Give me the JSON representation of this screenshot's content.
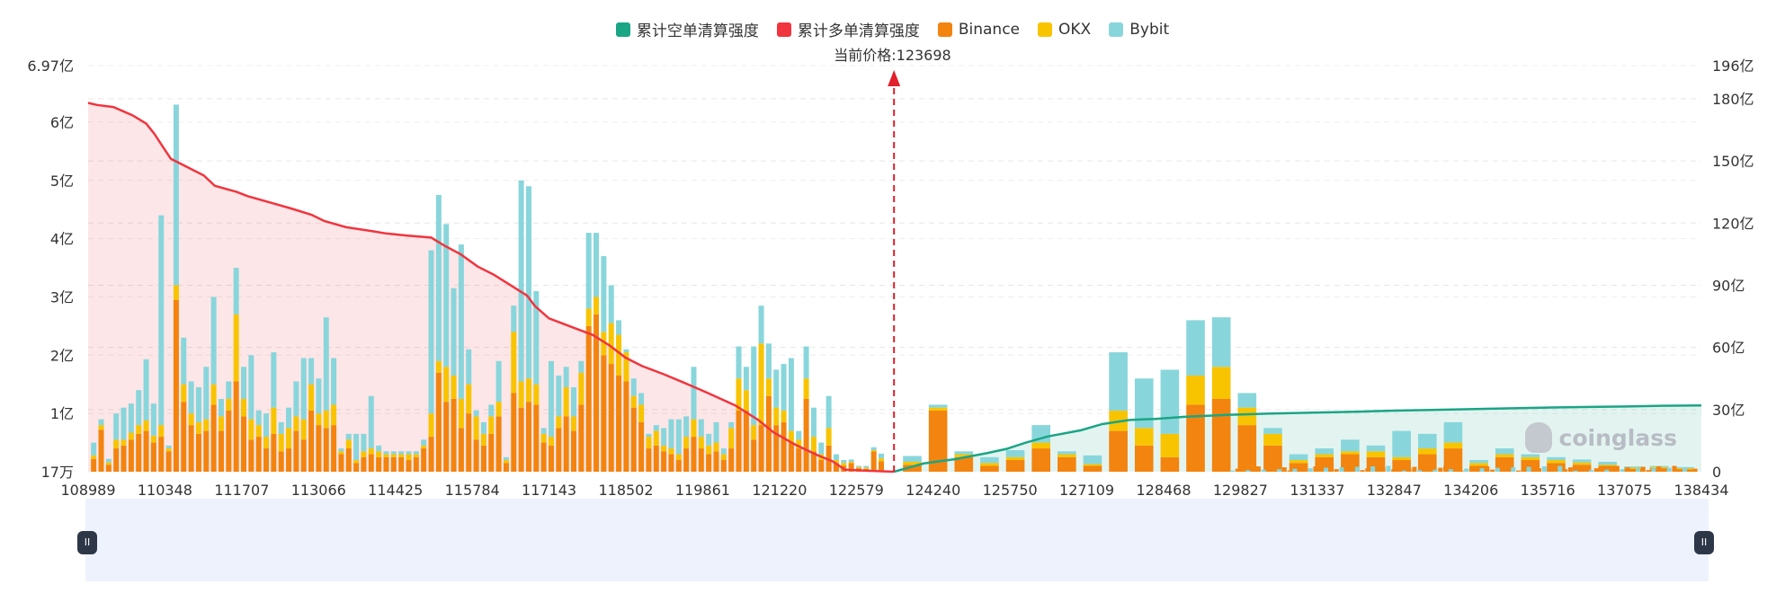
{
  "legend": [
    {
      "label": "累计空单清算强度",
      "color": "#1aa585"
    },
    {
      "label": "累计多单清算强度",
      "color": "#f0353e"
    },
    {
      "label": "Binance",
      "color": "#f2840f"
    },
    {
      "label": "OKX",
      "color": "#f8c400"
    },
    {
      "label": "Bybit",
      "color": "#88d6db"
    }
  ],
  "current_price_label": "当前价格:123698",
  "watermark": "coinglass",
  "slider": {
    "left_handle": "II",
    "right_handle": "II"
  },
  "chart_data": {
    "type": "bar",
    "x_range": [
      108989,
      138434
    ],
    "current_price": 123698,
    "x_ticks": [
      "108989",
      "110348",
      "111707",
      "113066",
      "114425",
      "115784",
      "117143",
      "118502",
      "119861",
      "121220",
      "122579",
      "124240",
      "125750",
      "127109",
      "128468",
      "129827",
      "131337",
      "132847",
      "134206",
      "135716",
      "137075",
      "138434"
    ],
    "left_axis": {
      "ticks": [
        {
          "label": "17万",
          "value": 0
        },
        {
          "label": "1亿",
          "value": 1
        },
        {
          "label": "2亿",
          "value": 2
        },
        {
          "label": "3亿",
          "value": 3
        },
        {
          "label": "4亿",
          "value": 4
        },
        {
          "label": "5亿",
          "value": 5
        },
        {
          "label": "6亿",
          "value": 6
        },
        {
          "label": "6.97亿",
          "value": 6.97
        }
      ],
      "max": 6.97,
      "unit": "亿"
    },
    "right_axis": {
      "ticks": [
        {
          "label": "0",
          "value": 0
        },
        {
          "label": "30亿",
          "value": 30
        },
        {
          "label": "60亿",
          "value": 60
        },
        {
          "label": "90亿",
          "value": 90
        },
        {
          "label": "120亿",
          "value": 120
        },
        {
          "label": "150亿",
          "value": 150
        },
        {
          "label": "180亿",
          "value": 180
        },
        {
          "label": "196亿",
          "value": 196
        }
      ],
      "max": 196,
      "unit": "亿"
    },
    "bars_left": [
      [
        0.22,
        0.06,
        0.22
      ],
      [
        0.72,
        0.08,
        0.1
      ],
      [
        0.12,
        0.04,
        0.06
      ],
      [
        0.4,
        0.15,
        0.45
      ],
      [
        0.45,
        0.1,
        0.55
      ],
      [
        0.55,
        0.12,
        0.5
      ],
      [
        0.65,
        0.15,
        0.6
      ],
      [
        0.7,
        0.18,
        1.05
      ],
      [
        0.5,
        0.12,
        0.55
      ],
      [
        0.6,
        0.2,
        3.6
      ],
      [
        0.35,
        0.05,
        0.05
      ],
      [
        2.95,
        0.25,
        3.1
      ],
      [
        1.2,
        0.3,
        0.8
      ],
      [
        0.8,
        0.2,
        0.55
      ],
      [
        0.65,
        0.2,
        0.6
      ],
      [
        0.7,
        0.2,
        0.9
      ],
      [
        1.15,
        0.35,
        1.5
      ],
      [
        0.7,
        0.25,
        0.3
      ],
      [
        1.05,
        0.2,
        0.3
      ],
      [
        1.55,
        1.15,
        0.8
      ],
      [
        0.95,
        0.3,
        0.55
      ],
      [
        0.55,
        0.35,
        1.1
      ],
      [
        0.6,
        0.2,
        0.25
      ],
      [
        0.4,
        0.2,
        0.4
      ],
      [
        0.65,
        0.45,
        0.95
      ],
      [
        0.35,
        0.3,
        0.2
      ],
      [
        0.4,
        0.35,
        0.35
      ],
      [
        0.7,
        0.25,
        0.6
      ],
      [
        0.55,
        0.35,
        1.05
      ],
      [
        1.05,
        0.45,
        0.45
      ],
      [
        0.8,
        0.2,
        0.6
      ],
      [
        0.75,
        0.3,
        1.6
      ],
      [
        0.8,
        0.35,
        0.8
      ],
      [
        0.3,
        0.05,
        0.05
      ],
      [
        0.4,
        0.15,
        0.1
      ],
      [
        0.15,
        0.05,
        0.45
      ],
      [
        0.25,
        0.1,
        0.3
      ],
      [
        0.3,
        0.1,
        0.9
      ],
      [
        0.25,
        0.1,
        0.1
      ],
      [
        0.25,
        0.05,
        0.05
      ],
      [
        0.25,
        0.05,
        0.05
      ],
      [
        0.25,
        0.05,
        0.05
      ],
      [
        0.2,
        0.1,
        0.05
      ],
      [
        0.25,
        0.05,
        0.05
      ],
      [
        0.4,
        0.05,
        0.1
      ],
      [
        0.6,
        0.4,
        2.8
      ],
      [
        1.7,
        0.2,
        2.85
      ],
      [
        1.2,
        0.6,
        2.45
      ],
      [
        1.25,
        0.4,
        1.5
      ],
      [
        0.75,
        0.5,
        2.65
      ],
      [
        1.0,
        0.5,
        0.6
      ],
      [
        0.55,
        0.4,
        0.1
      ],
      [
        0.45,
        0.2,
        0.2
      ],
      [
        0.65,
        0.3,
        0.2
      ],
      [
        0.95,
        0.25,
        0.7
      ],
      [
        0.15,
        0.05,
        0.05
      ],
      [
        1.35,
        1.05,
        0.45
      ],
      [
        1.1,
        0.45,
        3.45
      ],
      [
        1.2,
        0.4,
        3.3
      ],
      [
        1.15,
        0.35,
        1.6
      ],
      [
        0.5,
        0.15,
        0.1
      ],
      [
        0.45,
        0.15,
        1.3
      ],
      [
        0.75,
        0.2,
        0.7
      ],
      [
        0.95,
        0.5,
        0.35
      ],
      [
        0.7,
        0.25,
        0.5
      ],
      [
        1.15,
        0.55,
        0.2
      ],
      [
        2.5,
        0.3,
        1.3
      ],
      [
        2.7,
        0.3,
        1.1
      ],
      [
        2.0,
        0.4,
        1.3
      ],
      [
        1.85,
        0.7,
        0.65
      ],
      [
        1.65,
        0.7,
        0.25
      ],
      [
        1.55,
        0.5,
        0.05
      ],
      [
        1.1,
        0.2,
        0.3
      ],
      [
        0.85,
        0.3,
        0.2
      ],
      [
        0.4,
        0.2,
        0.05
      ],
      [
        0.45,
        0.25,
        0.1
      ],
      [
        0.35,
        0.1,
        0.3
      ],
      [
        0.3,
        0.1,
        0.5
      ],
      [
        0.2,
        0.1,
        0.6
      ],
      [
        0.4,
        0.2,
        0.35
      ],
      [
        0.6,
        0.3,
        0.9
      ],
      [
        0.4,
        0.2,
        0.3
      ],
      [
        0.3,
        0.15,
        0.2
      ],
      [
        0.35,
        0.15,
        0.35
      ],
      [
        0.2,
        0.1,
        0.1
      ],
      [
        0.4,
        0.35,
        0.1
      ],
      [
        1.05,
        0.55,
        0.55
      ],
      [
        1.05,
        0.35,
        0.4
      ],
      [
        0.55,
        0.25,
        1.35
      ],
      [
        0.8,
        1.4,
        0.65
      ],
      [
        1.3,
        0.3,
        0.6
      ],
      [
        0.8,
        0.3,
        0.65
      ],
      [
        0.85,
        0.2,
        0.8
      ],
      [
        0.5,
        0.2,
        1.25
      ],
      [
        0.4,
        0.15,
        0.15
      ],
      [
        1.25,
        0.35,
        0.55
      ],
      [
        0.35,
        0.25,
        0.5
      ],
      [
        0.2,
        0.1,
        0.2
      ],
      [
        0.45,
        0.3,
        0.55
      ],
      [
        0.15,
        0.05,
        0.1
      ],
      [
        0.1,
        0.05,
        0.05
      ],
      [
        0.15,
        0.02,
        0.04
      ],
      [
        0.06,
        0.02,
        0.02
      ],
      [
        0.05,
        0.02,
        0.03
      ],
      [
        0.35,
        0.02,
        0.05
      ],
      [
        0.18,
        0.05,
        0.08
      ]
    ],
    "bars_right": [
      [
        0.12,
        0.05,
        0.1
      ],
      [
        1.05,
        0.05,
        0.05
      ],
      [
        0.25,
        0.05,
        0.05
      ],
      [
        0.1,
        0.05,
        0.1
      ],
      [
        0.2,
        0.05,
        0.12
      ],
      [
        0.4,
        0.1,
        0.3
      ],
      [
        0.25,
        0.05,
        0.05
      ],
      [
        0.1,
        0.03,
        0.15
      ],
      [
        0.7,
        0.35,
        1.0
      ],
      [
        0.45,
        0.3,
        0.85
      ],
      [
        0.25,
        0.4,
        1.1
      ],
      [
        1.15,
        0.5,
        0.95
      ],
      [
        1.25,
        0.55,
        0.85
      ],
      [
        0.8,
        0.3,
        0.25
      ],
      [
        0.45,
        0.2,
        0.1
      ],
      [
        0.15,
        0.05,
        0.1
      ],
      [
        0.25,
        0.05,
        0.1
      ],
      [
        0.3,
        0.05,
        0.2
      ],
      [
        0.25,
        0.1,
        0.1
      ],
      [
        0.2,
        0.05,
        0.45
      ],
      [
        0.3,
        0.1,
        0.25
      ],
      [
        0.4,
        0.1,
        0.35
      ],
      [
        0.1,
        0.05,
        0.05
      ],
      [
        0.25,
        0.05,
        0.1
      ],
      [
        0.2,
        0.05,
        0.05
      ],
      [
        0.15,
        0.05,
        0.05
      ],
      [
        0.12,
        0.04,
        0.05
      ],
      [
        0.1,
        0.02,
        0.05
      ],
      [
        0.05,
        0.02,
        0.02
      ],
      [
        0.06,
        0.02,
        0.02
      ],
      [
        0.04,
        0.02,
        0.02
      ]
    ],
    "cumulative_long_yi": [
      [
        108989,
        178
      ],
      [
        109150,
        177
      ],
      [
        109450,
        176
      ],
      [
        109800,
        172
      ],
      [
        110050,
        168
      ],
      [
        110200,
        163
      ],
      [
        110348,
        157
      ],
      [
        110500,
        151
      ],
      [
        110800,
        147
      ],
      [
        111100,
        143
      ],
      [
        111300,
        138
      ],
      [
        111707,
        135
      ],
      [
        111900,
        133
      ],
      [
        112300,
        130
      ],
      [
        112700,
        127
      ],
      [
        113066,
        124
      ],
      [
        113300,
        121
      ],
      [
        113700,
        118
      ],
      [
        114200,
        116
      ],
      [
        114425,
        115
      ],
      [
        114800,
        114
      ],
      [
        115250,
        113
      ],
      [
        115500,
        109
      ],
      [
        115784,
        105
      ],
      [
        116100,
        99
      ],
      [
        116400,
        95
      ],
      [
        116700,
        90
      ],
      [
        117000,
        85
      ],
      [
        117143,
        80
      ],
      [
        117400,
        74
      ],
      [
        117800,
        70
      ],
      [
        118200,
        66
      ],
      [
        118502,
        61
      ],
      [
        118800,
        55
      ],
      [
        119100,
        51
      ],
      [
        119500,
        47
      ],
      [
        119861,
        43
      ],
      [
        120300,
        38
      ],
      [
        120800,
        32
      ],
      [
        121220,
        25
      ],
      [
        121500,
        19
      ],
      [
        121900,
        13
      ],
      [
        122300,
        8
      ],
      [
        122579,
        5
      ],
      [
        122800,
        1
      ],
      [
        123200,
        0.5
      ],
      [
        123698,
        0
      ]
    ],
    "cumulative_short_yi": [
      [
        123698,
        0
      ],
      [
        124240,
        4
      ],
      [
        124800,
        6
      ],
      [
        125400,
        9
      ],
      [
        125750,
        11
      ],
      [
        126100,
        14
      ],
      [
        126500,
        17
      ],
      [
        127109,
        20
      ],
      [
        127500,
        23
      ],
      [
        128000,
        25
      ],
      [
        128468,
        25.5
      ],
      [
        129000,
        26.5
      ],
      [
        129827,
        27.5
      ],
      [
        130500,
        28
      ],
      [
        131337,
        28.5
      ],
      [
        132200,
        29
      ],
      [
        132847,
        29.5
      ],
      [
        133500,
        29.8
      ],
      [
        134206,
        30.2
      ],
      [
        135000,
        30.6
      ],
      [
        135716,
        31
      ],
      [
        136400,
        31.3
      ],
      [
        137075,
        31.5
      ],
      [
        137700,
        31.8
      ],
      [
        138434,
        32
      ]
    ],
    "grid": true
  }
}
